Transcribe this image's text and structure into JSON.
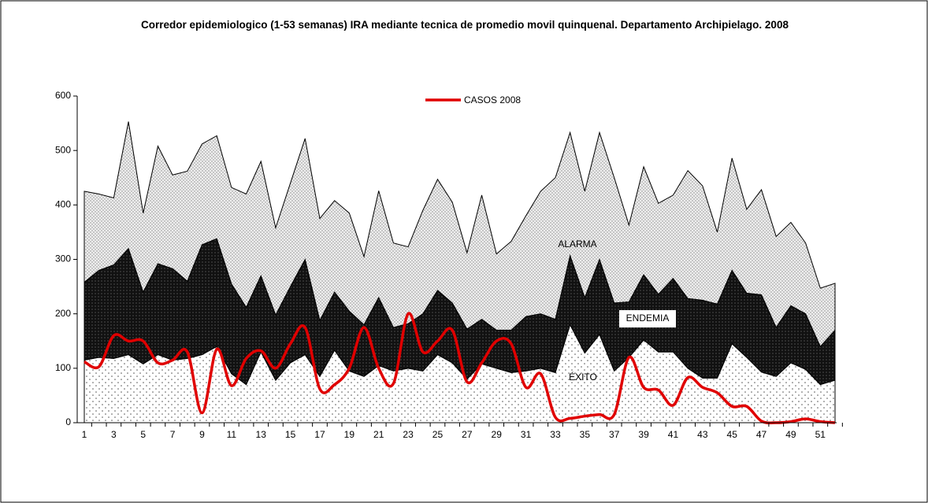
{
  "chart_data": {
    "type": "stacked-area-line",
    "title": "Corredor epidemiologico (1-53 semanas) IRA mediante tecnica de promedio movil quinquenal.  Departamento Archipielago.  2008",
    "categories": [
      "1",
      null,
      "3",
      null,
      "5",
      null,
      "7",
      null,
      "9",
      null,
      "11",
      null,
      "13",
      null,
      "15",
      null,
      "17",
      null,
      "19",
      null,
      "21",
      null,
      "23",
      null,
      "25",
      null,
      "27",
      null,
      "29",
      null,
      "31",
      null,
      "33",
      null,
      "35",
      null,
      "37",
      null,
      "39",
      null,
      "41",
      null,
      "43",
      null,
      "45",
      null,
      "47",
      null,
      "49",
      null,
      "51",
      null
    ],
    "series": [
      {
        "name": "ÉXITO",
        "color": "#ffffff",
        "stack": true,
        "values": [
          115,
          120,
          118,
          125,
          108,
          125,
          115,
          118,
          125,
          140,
          90,
          70,
          130,
          78,
          110,
          125,
          85,
          133,
          95,
          85,
          105,
          95,
          100,
          95,
          125,
          110,
          80,
          108,
          100,
          92,
          95,
          100,
          92,
          180,
          128,
          162,
          95,
          120,
          152,
          130,
          130,
          100,
          82,
          82,
          145,
          120,
          93,
          85,
          110,
          98,
          70,
          78
        ]
      },
      {
        "name": "ENDEMIA",
        "color": "#1a1a1a",
        "stack": true,
        "values": [
          143,
          160,
          172,
          195,
          132,
          167,
          168,
          142,
          202,
          198,
          165,
          142,
          140,
          120,
          140,
          175,
          103,
          107,
          110,
          95,
          125,
          80,
          82,
          105,
          118,
          110,
          92,
          82,
          70,
          78,
          100,
          100,
          98,
          127,
          102,
          138,
          125,
          102,
          120,
          106,
          135,
          128,
          143,
          136,
          135,
          118,
          142,
          90,
          105,
          102,
          70,
          92
        ]
      },
      {
        "name": "ALARMA",
        "color": "#cfcfcf",
        "stack": true,
        "values": [
          167,
          140,
          123,
          233,
          145,
          216,
          172,
          202,
          185,
          189,
          177,
          208,
          210,
          160,
          190,
          222,
          187,
          168,
          180,
          125,
          196,
          155,
          141,
          190,
          204,
          185,
          140,
          228,
          140,
          163,
          185,
          225,
          260,
          226,
          195,
          233,
          230,
          141,
          198,
          167,
          153,
          235,
          210,
          132,
          206,
          154,
          193,
          167,
          153,
          130,
          107,
          86
        ]
      },
      {
        "name": "CASOS 2008",
        "color": "#e00000",
        "line": true,
        "values": [
          112,
          103,
          160,
          150,
          150,
          110,
          115,
          130,
          18,
          135,
          68,
          118,
          132,
          100,
          145,
          175,
          62,
          70,
          100,
          175,
          100,
          72,
          200,
          130,
          150,
          170,
          75,
          110,
          150,
          145,
          65,
          90,
          10,
          8,
          12,
          15,
          15,
          120,
          65,
          60,
          32,
          83,
          65,
          55,
          30,
          30,
          3,
          0,
          2,
          7,
          2,
          0
        ]
      }
    ],
    "ylim": [
      0,
      600
    ],
    "yticks": [
      0,
      100,
      200,
      300,
      400,
      500,
      600
    ]
  }
}
